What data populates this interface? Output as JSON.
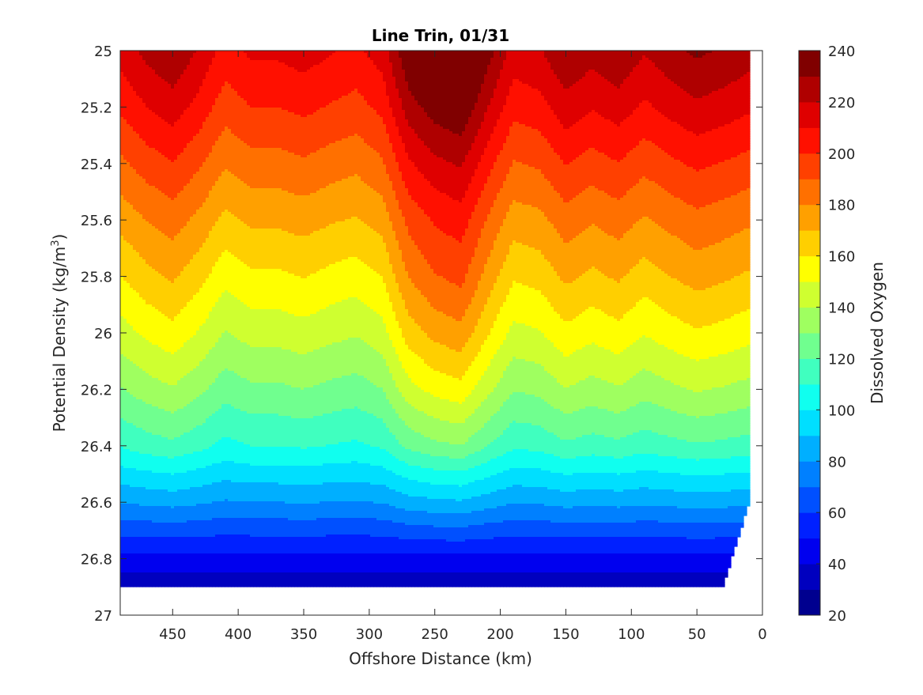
{
  "chart_data": {
    "type": "heatmap",
    "subtype": "filled-contour",
    "title": "Line Trin, 01/31",
    "xlabel": "Offshore Distance (km)",
    "ylabel": "Potential Density (kg/m",
    "ylabel_sup": "3",
    "ylabel_close": ")",
    "colorbar_label": "Dissolved Oxygen",
    "x_reversed": true,
    "y_reversed": true,
    "xlim": [
      490,
      0
    ],
    "ylim": [
      25,
      27
    ],
    "x_ticks": [
      450,
      400,
      350,
      300,
      250,
      200,
      150,
      100,
      50,
      0
    ],
    "x_tick_labels": [
      "450",
      "400",
      "350",
      "300",
      "250",
      "200",
      "150",
      "100",
      "50",
      "0"
    ],
    "y_ticks": [
      25,
      25.2,
      25.4,
      25.6,
      25.8,
      26,
      26.2,
      26.4,
      26.6,
      26.8,
      27
    ],
    "y_tick_labels": [
      "25",
      "25.2",
      "25.4",
      "25.6",
      "25.8",
      "26",
      "26.2",
      "26.4",
      "26.6",
      "26.8",
      "27"
    ],
    "colorbar_ticks": [
      20,
      40,
      60,
      80,
      100,
      120,
      140,
      160,
      180,
      200,
      220,
      240
    ],
    "colorbar_tick_labels": [
      "20",
      "40",
      "60",
      "80",
      "100",
      "120",
      "140",
      "160",
      "180",
      "200",
      "220",
      "240"
    ],
    "colorbar_range": [
      20,
      240
    ],
    "contour_levels": [
      20,
      30,
      40,
      50,
      60,
      70,
      80,
      90,
      100,
      110,
      120,
      130,
      140,
      150,
      160,
      170,
      180,
      190,
      200,
      210,
      220,
      230,
      240
    ],
    "level_colors": [
      "#00008f",
      "#0000bf",
      "#0000ef",
      "#0020ff",
      "#0050ff",
      "#0080ff",
      "#00afff",
      "#00dfff",
      "#10ffef",
      "#40ffbf",
      "#70ff8f",
      "#9fff60",
      "#cfff30",
      "#ffff00",
      "#ffcf00",
      "#ffa000",
      "#ff7000",
      "#ff4000",
      "#ff1000",
      "#df0000",
      "#af0000",
      "#800000"
    ],
    "grid": false,
    "colormap": "jet",
    "stations_x": [
      490,
      470,
      450,
      430,
      410,
      390,
      370,
      350,
      330,
      310,
      290,
      270,
      250,
      230,
      210,
      190,
      170,
      150,
      130,
      110,
      90,
      70,
      50,
      30,
      10
    ],
    "bottom_density": [
      26.9,
      26.9,
      26.9,
      26.9,
      26.9,
      26.9,
      26.9,
      26.9,
      26.9,
      26.9,
      26.9,
      26.9,
      26.9,
      26.9,
      26.9,
      26.9,
      26.9,
      26.9,
      26.9,
      26.9,
      26.9,
      26.9,
      26.9,
      26.9,
      26.6
    ],
    "profile_densities": [
      25.0,
      25.2,
      25.4,
      25.6,
      25.8,
      26.0,
      26.2,
      26.4,
      26.5,
      26.6,
      26.7,
      26.8,
      26.9
    ],
    "profile_oxygen": [
      212,
      200,
      186,
      172,
      158,
      144,
      128,
      110,
      95,
      80,
      63,
      47,
      33
    ],
    "station_offsets": [
      -2,
      5,
      12,
      7,
      -4,
      4,
      0,
      5,
      3,
      2,
      7,
      0,
      -3,
      0,
      -3,
      -6,
      2,
      -2,
      -10,
      2,
      -6,
      1,
      10,
      7,
      3
    ],
    "tilt": [
      4,
      6,
      5,
      0,
      -2,
      -4,
      0,
      -2,
      -4,
      -6,
      -4,
      28,
      42,
      44,
      26,
      10,
      5,
      20,
      22,
      15,
      15,
      14,
      10,
      10,
      10
    ],
    "tilt_decay": [
      0.0,
      0.1,
      0.2,
      0.25,
      0.2,
      0.25,
      0.35,
      0.55,
      0.7,
      0.8,
      0.9,
      1.0,
      1.0
    ]
  }
}
